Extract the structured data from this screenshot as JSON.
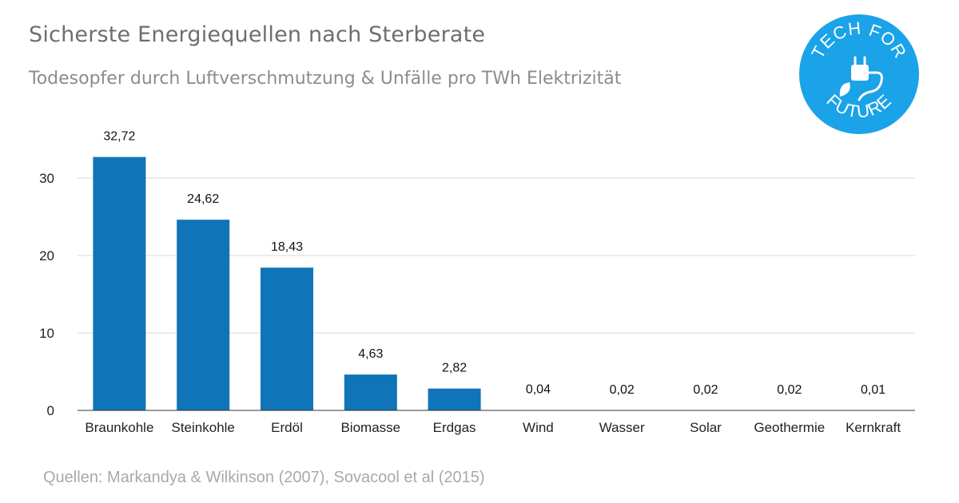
{
  "header": {
    "title": "Sicherste Energiequellen nach Sterberate",
    "subtitle": "Todesopfer durch Luftverschmutzung & Unfälle pro TWh Elektrizität"
  },
  "footer": {
    "source": "Quellen: Markandya & Wilkinson (2007), Sovacool et al (2015)"
  },
  "logo": {
    "text_top": "TECH FOR",
    "text_bottom": "FUTURE",
    "color": "#1aa3e8",
    "icon": "plug-leaf-icon"
  },
  "chart_data": {
    "type": "bar",
    "title": "Sicherste Energiequellen nach Sterberate",
    "subtitle": "Todesopfer durch Luftverschmutzung & Unfälle pro TWh Elektrizität",
    "categories": [
      "Braunkohle",
      "Steinkohle",
      "Erdöl",
      "Biomasse",
      "Erdgas",
      "Wind",
      "Wasser",
      "Solar",
      "Geothermie",
      "Kernkraft"
    ],
    "values": [
      32.72,
      24.62,
      18.43,
      4.63,
      2.82,
      0.04,
      0.02,
      0.02,
      0.02,
      0.01
    ],
    "value_labels": [
      "32,72",
      "24,62",
      "18,43",
      "4,63",
      "2,82",
      "0,04",
      "0,02",
      "0,02",
      "0,02",
      "0,01"
    ],
    "xlabel": "",
    "ylabel": "",
    "ylim": [
      0,
      35
    ],
    "yticks": [
      0,
      10,
      20,
      30
    ],
    "grid": true,
    "legend": "none",
    "bar_color": "#0f74b8"
  }
}
